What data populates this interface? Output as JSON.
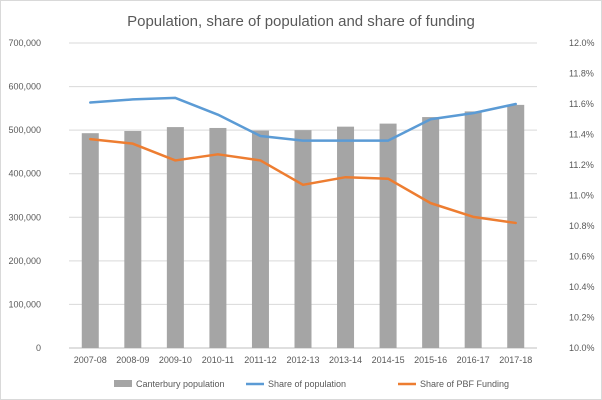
{
  "chart_data": {
    "type": "bar",
    "title": "Population, share of population and share of funding",
    "categories": [
      "2007-08",
      "2008-09",
      "2009-10",
      "2010-11",
      "2011-12",
      "2012-13",
      "2013-14",
      "2014-15",
      "2015-16",
      "2016-17",
      "2017-18"
    ],
    "left_axis": {
      "ylim": [
        0,
        700000
      ],
      "tick_values": [
        0,
        100000,
        200000,
        300000,
        400000,
        500000,
        600000,
        700000
      ],
      "tick_labels": [
        "0",
        "100,000",
        "200,000",
        "300,000",
        "400,000",
        "500,000",
        "600,000",
        "700,000"
      ]
    },
    "right_axis": {
      "ylim": [
        10.0,
        12.0
      ],
      "tick_values": [
        10.0,
        10.2,
        10.4,
        10.6,
        10.8,
        11.0,
        11.2,
        11.4,
        11.6,
        11.8,
        12.0
      ],
      "tick_labels": [
        "10.0%",
        "10.2%",
        "10.4%",
        "10.6%",
        "10.8%",
        "11.0%",
        "11.2%",
        "11.4%",
        "11.6%",
        "11.8%",
        "12.0%"
      ]
    },
    "series": [
      {
        "name": "Canterbury population",
        "type": "bar",
        "axis": "left",
        "color": "#a5a5a5",
        "values": [
          493000,
          498000,
          507000,
          505000,
          499000,
          500000,
          508000,
          515000,
          530000,
          543000,
          558000
        ]
      },
      {
        "name": "Share of population",
        "type": "line",
        "axis": "right",
        "color": "#5b9bd5",
        "values": [
          11.61,
          11.63,
          11.64,
          11.53,
          11.39,
          11.36,
          11.36,
          11.36,
          11.5,
          11.54,
          11.6
        ]
      },
      {
        "name": "Share of PBF Funding",
        "type": "line",
        "axis": "right",
        "color": "#ed7d31",
        "values": [
          11.37,
          11.34,
          11.23,
          11.27,
          11.23,
          11.07,
          11.12,
          11.11,
          10.95,
          10.86,
          10.82
        ]
      }
    ],
    "grid": true,
    "legend_position": "bottom"
  }
}
